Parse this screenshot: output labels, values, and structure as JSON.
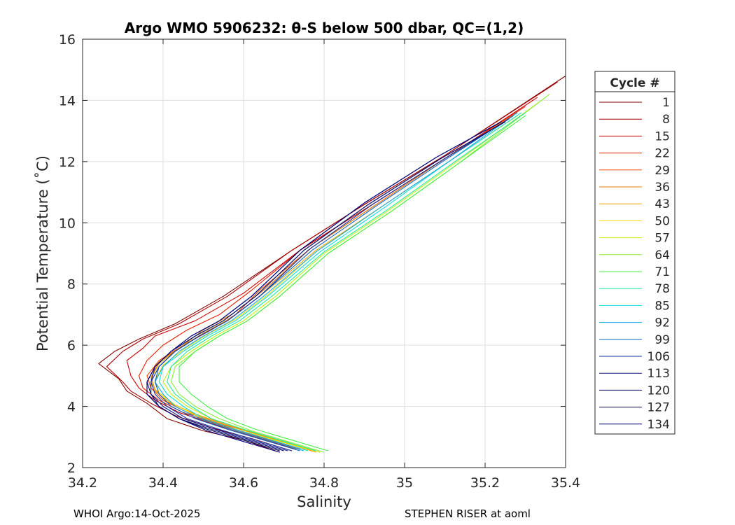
{
  "chart_data": {
    "type": "line",
    "title": "Argo WMO 5906232: θ-S below 500 dbar,  QC=(1,2)",
    "xlabel": "Salinity",
    "ylabel": "Potential Temperature (˚C)",
    "xlim": [
      34.2,
      35.4
    ],
    "ylim": [
      2,
      16
    ],
    "xticks": [
      "34.2",
      "34.4",
      "34.6",
      "34.8",
      "35",
      "35.2",
      "35.4"
    ],
    "yticks": [
      "2",
      "4",
      "6",
      "8",
      "10",
      "12",
      "14",
      "16"
    ],
    "grid": true,
    "legend": {
      "title": "Cycle #",
      "placement": "outside-right",
      "entries": [
        {
          "label": "1",
          "color": "#800000"
        },
        {
          "label": "8",
          "color": "#a80000"
        },
        {
          "label": "15",
          "color": "#cc0000"
        },
        {
          "label": "22",
          "color": "#e81c00"
        },
        {
          "label": "29",
          "color": "#f04a00"
        },
        {
          "label": "36",
          "color": "#e87800"
        },
        {
          "label": "43",
          "color": "#f0a800"
        },
        {
          "label": "50",
          "color": "#ffdd00"
        },
        {
          "label": "57",
          "color": "#c8ee10"
        },
        {
          "label": "64",
          "color": "#88ee30"
        },
        {
          "label": "71",
          "color": "#44ee44"
        },
        {
          "label": "78",
          "color": "#22e8a0"
        },
        {
          "label": "85",
          "color": "#10dcdc"
        },
        {
          "label": "92",
          "color": "#10a8e8"
        },
        {
          "label": "99",
          "color": "#1060c0"
        },
        {
          "label": "106",
          "color": "#1030a0"
        },
        {
          "label": "113",
          "color": "#101888"
        },
        {
          "label": "120",
          "color": "#0a1070"
        },
        {
          "label": "127",
          "color": "#0a0a50"
        },
        {
          "label": "134",
          "color": "#000080"
        }
      ]
    },
    "series": [
      {
        "cycle": "1",
        "color": "#800000",
        "x": [
          34.69,
          34.6,
          34.5,
          34.41,
          34.36,
          34.31,
          34.29,
          34.24,
          34.28,
          34.34,
          34.43,
          34.55,
          34.72,
          34.9,
          35.1,
          35.4
        ],
        "y": [
          2.5,
          2.9,
          3.2,
          3.6,
          4.1,
          4.5,
          4.9,
          5.4,
          5.8,
          6.2,
          6.7,
          7.6,
          9.1,
          10.6,
          12.2,
          14.8
        ]
      },
      {
        "cycle": "8",
        "color": "#a80000",
        "x": [
          34.72,
          34.62,
          34.52,
          34.43,
          34.37,
          34.32,
          34.3,
          34.26,
          34.3,
          34.35,
          34.44,
          34.56,
          34.72,
          34.9,
          35.1,
          35.38
        ],
        "y": [
          2.55,
          2.95,
          3.3,
          3.7,
          4.1,
          4.5,
          4.8,
          5.3,
          5.8,
          6.2,
          6.7,
          7.6,
          9.1,
          10.6,
          12.2,
          14.6
        ]
      },
      {
        "cycle": "15",
        "color": "#cc0000",
        "x": [
          34.73,
          34.63,
          34.53,
          34.44,
          34.38,
          34.34,
          34.32,
          34.31,
          34.35,
          34.38,
          34.48,
          34.6,
          34.74,
          34.92,
          35.1,
          35.33
        ],
        "y": [
          2.6,
          3.0,
          3.4,
          3.8,
          4.2,
          4.6,
          5.0,
          5.5,
          5.9,
          6.3,
          6.8,
          7.7,
          9.1,
          10.6,
          12.1,
          14.1
        ]
      },
      {
        "cycle": "22",
        "color": "#e81c00",
        "x": [
          34.74,
          34.64,
          34.54,
          34.45,
          34.39,
          34.35,
          34.34,
          34.36,
          34.4,
          34.46,
          34.54,
          34.62,
          34.75,
          34.92,
          35.1,
          35.3
        ],
        "y": [
          2.6,
          3.0,
          3.4,
          3.8,
          4.2,
          4.6,
          5.0,
          5.5,
          6.0,
          6.5,
          7.0,
          7.8,
          9.2,
          10.6,
          12.1,
          13.8
        ]
      },
      {
        "cycle": "29",
        "color": "#f04a00",
        "x": [
          34.76,
          34.66,
          34.55,
          34.46,
          34.4,
          34.37,
          34.36,
          34.39,
          34.45,
          34.52,
          34.58,
          34.64,
          34.77,
          34.93,
          35.1,
          35.28
        ],
        "y": [
          2.6,
          3.0,
          3.4,
          3.8,
          4.2,
          4.6,
          5.0,
          5.5,
          6.0,
          6.5,
          7.0,
          7.8,
          9.2,
          10.6,
          12.1,
          13.6
        ]
      },
      {
        "cycle": "36",
        "color": "#e87800",
        "x": [
          34.77,
          34.67,
          34.57,
          34.48,
          34.41,
          34.38,
          34.37,
          34.39,
          34.45,
          34.5,
          34.57,
          34.65,
          34.77,
          34.93,
          35.1,
          35.28
        ],
        "y": [
          2.55,
          2.95,
          3.35,
          3.75,
          4.15,
          4.55,
          4.95,
          5.45,
          6.0,
          6.5,
          7.0,
          7.8,
          9.2,
          10.6,
          12.1,
          13.6
        ]
      },
      {
        "cycle": "43",
        "color": "#f0a800",
        "x": [
          34.78,
          34.68,
          34.58,
          34.49,
          34.42,
          34.38,
          34.37,
          34.39,
          34.44,
          34.5,
          34.57,
          34.65,
          34.78,
          34.94,
          35.11,
          35.28
        ],
        "y": [
          2.5,
          2.9,
          3.3,
          3.7,
          4.1,
          4.5,
          4.9,
          5.4,
          5.9,
          6.4,
          6.9,
          7.7,
          9.1,
          10.5,
          12.0,
          13.5
        ]
      },
      {
        "cycle": "50",
        "color": "#ffdd00",
        "x": [
          34.79,
          34.69,
          34.58,
          34.49,
          34.43,
          34.39,
          34.38,
          34.4,
          34.45,
          34.51,
          34.58,
          34.66,
          34.78,
          34.94,
          35.11,
          35.28
        ],
        "y": [
          2.5,
          2.85,
          3.25,
          3.65,
          4.05,
          4.45,
          4.85,
          5.35,
          5.85,
          6.35,
          6.85,
          7.65,
          9.05,
          10.5,
          12.0,
          13.5
        ]
      },
      {
        "cycle": "57",
        "color": "#c8ee10",
        "x": [
          34.79,
          34.7,
          34.6,
          34.52,
          34.46,
          34.42,
          34.4,
          34.42,
          34.47,
          34.53,
          34.6,
          34.68,
          34.8,
          34.96,
          35.12,
          35.34
        ],
        "y": [
          2.5,
          2.85,
          3.25,
          3.6,
          4.0,
          4.4,
          4.8,
          5.3,
          5.8,
          6.3,
          6.8,
          7.6,
          9.0,
          10.4,
          11.9,
          14.0
        ]
      },
      {
        "cycle": "64",
        "color": "#88ee30",
        "x": [
          34.8,
          34.71,
          34.62,
          34.54,
          34.48,
          34.44,
          34.42,
          34.43,
          34.48,
          34.54,
          34.61,
          34.69,
          34.81,
          34.97,
          35.13,
          35.36
        ],
        "y": [
          2.5,
          2.85,
          3.2,
          3.6,
          4.0,
          4.4,
          4.8,
          5.3,
          5.8,
          6.3,
          6.8,
          7.6,
          9.0,
          10.4,
          11.9,
          14.2
        ]
      },
      {
        "cycle": "71",
        "color": "#44ee44",
        "x": [
          34.81,
          34.72,
          34.63,
          34.56,
          34.51,
          34.47,
          34.44,
          34.44,
          34.48,
          34.54,
          34.61,
          34.69,
          34.81,
          34.97,
          35.13,
          35.3
        ],
        "y": [
          2.55,
          2.9,
          3.25,
          3.6,
          4.0,
          4.4,
          4.8,
          5.3,
          5.8,
          6.3,
          6.8,
          7.6,
          9.0,
          10.4,
          11.9,
          13.5
        ]
      },
      {
        "cycle": "78",
        "color": "#22e8a0",
        "x": [
          34.78,
          34.69,
          34.6,
          34.52,
          34.47,
          34.43,
          34.41,
          34.42,
          34.46,
          34.52,
          34.59,
          34.67,
          34.8,
          34.96,
          35.12,
          35.3
        ],
        "y": [
          2.55,
          2.9,
          3.25,
          3.6,
          4.0,
          4.4,
          4.8,
          5.3,
          5.8,
          6.3,
          6.8,
          7.6,
          9.05,
          10.45,
          11.95,
          13.6
        ]
      },
      {
        "cycle": "85",
        "color": "#10dcdc",
        "x": [
          34.76,
          34.67,
          34.58,
          34.5,
          34.45,
          34.41,
          34.39,
          34.4,
          34.45,
          34.51,
          34.58,
          34.66,
          34.79,
          34.95,
          35.11,
          35.29
        ],
        "y": [
          2.55,
          2.9,
          3.25,
          3.6,
          4.0,
          4.4,
          4.8,
          5.3,
          5.8,
          6.3,
          6.8,
          7.6,
          9.05,
          10.5,
          12.0,
          13.6
        ]
      },
      {
        "cycle": "92",
        "color": "#10a8e8",
        "x": [
          34.75,
          34.66,
          34.57,
          34.49,
          34.43,
          34.4,
          34.38,
          34.4,
          34.44,
          34.5,
          34.57,
          34.65,
          34.78,
          34.94,
          35.11,
          35.28
        ],
        "y": [
          2.55,
          2.9,
          3.25,
          3.6,
          4.0,
          4.4,
          4.8,
          5.3,
          5.8,
          6.3,
          6.8,
          7.6,
          9.05,
          10.5,
          12.0,
          13.6
        ]
      },
      {
        "cycle": "99",
        "color": "#1060c0",
        "x": [
          34.74,
          34.65,
          34.56,
          34.48,
          34.42,
          34.39,
          34.38,
          34.39,
          34.43,
          34.49,
          34.56,
          34.64,
          34.77,
          34.93,
          35.1,
          35.27
        ],
        "y": [
          2.55,
          2.9,
          3.25,
          3.6,
          4.0,
          4.4,
          4.8,
          5.3,
          5.8,
          6.3,
          6.8,
          7.6,
          9.1,
          10.55,
          12.05,
          13.5
        ]
      },
      {
        "cycle": "106",
        "color": "#1030a0",
        "x": [
          34.72,
          34.63,
          34.54,
          34.46,
          34.41,
          34.38,
          34.37,
          34.39,
          34.43,
          34.49,
          34.56,
          34.64,
          34.76,
          34.92,
          35.1,
          35.26
        ],
        "y": [
          2.55,
          2.9,
          3.25,
          3.6,
          4.0,
          4.4,
          4.8,
          5.3,
          5.8,
          6.3,
          6.8,
          7.6,
          9.1,
          10.6,
          12.1,
          13.4
        ]
      },
      {
        "cycle": "113",
        "color": "#101888",
        "x": [
          34.71,
          34.62,
          34.53,
          34.45,
          34.4,
          34.37,
          34.37,
          34.38,
          34.42,
          34.48,
          34.55,
          34.63,
          34.75,
          34.91,
          35.09,
          35.25
        ],
        "y": [
          2.55,
          2.9,
          3.25,
          3.6,
          4.0,
          4.4,
          4.8,
          5.3,
          5.8,
          6.3,
          6.8,
          7.6,
          9.1,
          10.6,
          12.1,
          13.3
        ]
      },
      {
        "cycle": "120",
        "color": "#0a1070",
        "x": [
          34.7,
          34.61,
          34.52,
          34.44,
          34.39,
          34.37,
          34.36,
          34.38,
          34.42,
          34.48,
          34.55,
          34.63,
          34.75,
          34.91,
          35.09,
          35.25
        ],
        "y": [
          2.55,
          2.9,
          3.25,
          3.6,
          4.0,
          4.4,
          4.8,
          5.3,
          5.8,
          6.3,
          6.8,
          7.6,
          9.1,
          10.6,
          12.1,
          13.3
        ]
      },
      {
        "cycle": "127",
        "color": "#0a0a50",
        "x": [
          34.69,
          34.6,
          34.51,
          34.44,
          34.39,
          34.36,
          34.36,
          34.38,
          34.42,
          34.47,
          34.54,
          34.62,
          34.74,
          34.9,
          35.08,
          35.24
        ],
        "y": [
          2.55,
          2.9,
          3.25,
          3.6,
          4.0,
          4.4,
          4.8,
          5.3,
          5.8,
          6.3,
          6.8,
          7.6,
          9.1,
          10.65,
          12.15,
          13.3
        ]
      },
      {
        "cycle": "134",
        "color": "#000080",
        "x": [
          34.69,
          34.6,
          34.51,
          34.44,
          34.39,
          34.36,
          34.36,
          34.38,
          34.42,
          34.47,
          34.54,
          34.62,
          34.74,
          34.9,
          35.08,
          35.24
        ],
        "y": [
          2.5,
          2.85,
          3.2,
          3.6,
          4.0,
          4.4,
          4.8,
          5.3,
          5.8,
          6.3,
          6.8,
          7.6,
          9.1,
          10.65,
          12.15,
          13.3
        ]
      }
    ]
  },
  "footer": {
    "left": "WHOI Argo:14-Oct-2025",
    "right": "STEPHEN RISER at aoml"
  }
}
